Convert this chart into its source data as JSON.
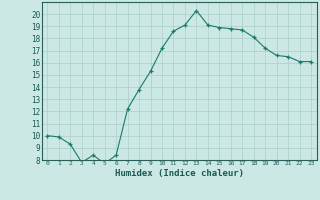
{
  "x": [
    0,
    1,
    2,
    3,
    4,
    5,
    6,
    7,
    8,
    9,
    10,
    11,
    12,
    13,
    14,
    15,
    16,
    17,
    18,
    19,
    20,
    21,
    22,
    23
  ],
  "y": [
    10.0,
    9.9,
    9.3,
    7.8,
    8.4,
    7.7,
    8.4,
    12.2,
    13.8,
    15.3,
    17.2,
    18.6,
    19.1,
    20.3,
    19.1,
    18.9,
    18.8,
    18.7,
    18.1,
    17.2,
    16.6,
    16.5,
    16.1,
    16.1
  ],
  "xlabel": "Humidex (Indice chaleur)",
  "ylim": [
    8,
    21
  ],
  "yticks": [
    8,
    9,
    10,
    11,
    12,
    13,
    14,
    15,
    16,
    17,
    18,
    19,
    20
  ],
  "xtick_labels": [
    "0",
    "1",
    "2",
    "3",
    "4",
    "5",
    "6",
    "7",
    "8",
    "9",
    "10",
    "11",
    "12",
    "13",
    "14",
    "15",
    "16",
    "17",
    "18",
    "19",
    "20",
    "21",
    "22",
    "23"
  ],
  "line_color": "#1a7a6e",
  "marker": "+",
  "marker_color": "#1a7a6e",
  "bg_color": "#cce8e4",
  "grid_color": "#aacdc8",
  "axes_color": "#2a5e58",
  "tick_label_color": "#1a5a54"
}
